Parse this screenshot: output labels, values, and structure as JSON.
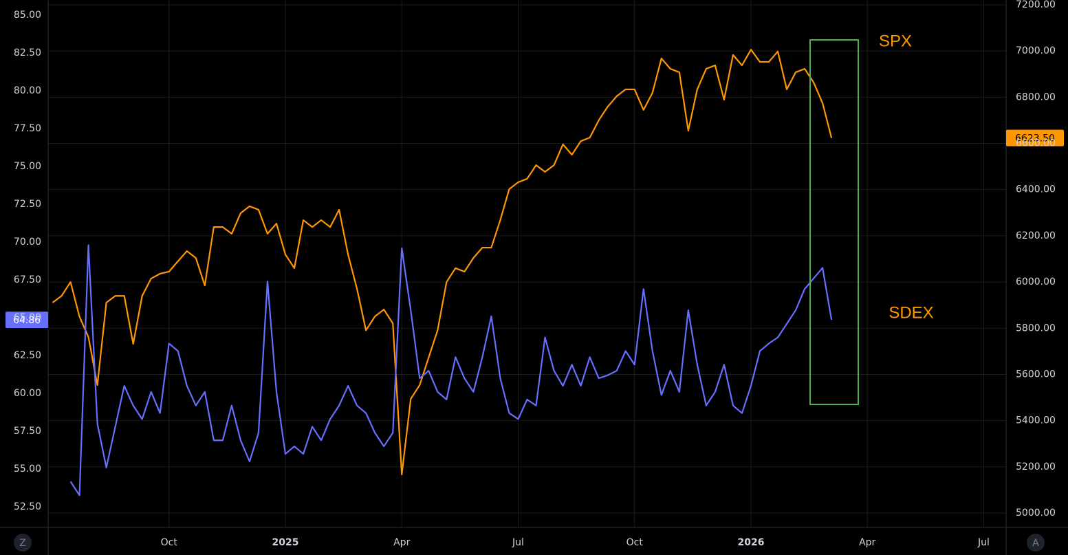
{
  "chart_data": {
    "type": "line",
    "categories": [
      null,
      null,
      null,
      null,
      null,
      null,
      null,
      null,
      null,
      null,
      null,
      null,
      null,
      "Oct",
      null,
      null,
      null,
      null,
      null,
      null,
      null,
      null,
      null,
      null,
      null,
      null,
      "2025",
      null,
      null,
      null,
      null,
      null,
      null,
      null,
      null,
      null,
      null,
      null,
      null,
      "Apr",
      null,
      null,
      null,
      null,
      null,
      null,
      null,
      null,
      null,
      null,
      null,
      null,
      "Jul",
      null,
      null,
      null,
      null,
      null,
      null,
      null,
      null,
      null,
      null,
      null,
      null,
      "Oct",
      null,
      null,
      null,
      null,
      null,
      null,
      null,
      null,
      null,
      null,
      null,
      null,
      "2026",
      null,
      null,
      null,
      null,
      null,
      null,
      null,
      null,
      null,
      null,
      null,
      null,
      "Apr",
      null,
      null,
      null,
      null,
      null,
      null,
      null,
      null,
      null,
      null,
      null,
      null,
      "Jul",
      null,
      null
    ],
    "series": [
      {
        "name": "SDEX",
        "color": "#6670ff",
        "axis": "y",
        "values": [
          null,
          null,
          54.18,
          53.27,
          69.8,
          58.0,
          55.1,
          57.8,
          60.5,
          59.2,
          58.3,
          60.1,
          58.7,
          63.3,
          62.8,
          60.5,
          59.2,
          60.1,
          56.9,
          56.9,
          59.2,
          56.9,
          55.5,
          57.4,
          67.4,
          60.1,
          56.0,
          56.5,
          56.0,
          57.8,
          56.9,
          58.3,
          59.2,
          60.5,
          59.2,
          58.7,
          57.4,
          56.5,
          57.4,
          69.6,
          65.5,
          61.0,
          61.5,
          60.1,
          59.6,
          62.4,
          61.0,
          60.1,
          62.4,
          65.1,
          61.0,
          58.7,
          58.3,
          59.6,
          59.2,
          63.7,
          61.5,
          60.5,
          61.9,
          60.5,
          62.4,
          61.0,
          61.2,
          61.5,
          62.8,
          61.9,
          66.9,
          62.8,
          59.9,
          61.5,
          60.1,
          65.5,
          61.9,
          59.2,
          60.1,
          61.9,
          59.2,
          58.7,
          60.5,
          62.8,
          63.3,
          63.7,
          64.6,
          65.5,
          66.9,
          67.6,
          68.3,
          64.86,
          null,
          null,
          null,
          null,
          null,
          null,
          null,
          null,
          null,
          null,
          null,
          null,
          null,
          null,
          null,
          null,
          null,
          null,
          null
        ],
        "value_labels": [
          null,
          null,
          null,
          null,
          null,
          null,
          null,
          null,
          null,
          null,
          null,
          null,
          null,
          null,
          null,
          null,
          null,
          null,
          null,
          null,
          null,
          null,
          null,
          null,
          null,
          null,
          null,
          null,
          null,
          null,
          null,
          null,
          null,
          null,
          null,
          null,
          null,
          null,
          null,
          null,
          null,
          null,
          null,
          null,
          null,
          null,
          null,
          null,
          null,
          null,
          null,
          null,
          null,
          null,
          null,
          null,
          null,
          null,
          null,
          null,
          null,
          null,
          null,
          null,
          null,
          null,
          null,
          null,
          null,
          null,
          null,
          null,
          null,
          null,
          null,
          null,
          null,
          null,
          null,
          null,
          null,
          null,
          null,
          null,
          null,
          null,
          null,
          "64.86",
          null,
          null,
          null,
          null,
          null,
          null,
          null,
          null,
          null,
          null,
          null,
          null,
          null,
          null,
          null,
          null,
          null,
          null,
          null
        ]
      },
      {
        "name": "SPX",
        "color": "#ff9800",
        "axis": "y2",
        "values": [
          5911,
          5940,
          6000,
          5850,
          5762,
          5554,
          5911,
          5940,
          5940,
          5732,
          5940,
          6015,
          6036,
          6045,
          6090,
          6134,
          6104,
          5985,
          6238,
          6238,
          6209,
          6298,
          6328,
          6313,
          6209,
          6253,
          6119,
          6060,
          6268,
          6238,
          6268,
          6238,
          6313,
          6119,
          5970,
          5791,
          5851,
          5881,
          5821,
          5167,
          5494,
          5554,
          5673,
          5791,
          6000,
          6060,
          6045,
          6104,
          6149,
          6149,
          6268,
          6402,
          6432,
          6447,
          6506,
          6477,
          6506,
          6596,
          6551,
          6610,
          6625,
          6700,
          6759,
          6804,
          6834,
          6834,
          6745,
          6819,
          6968,
          6923,
          6908,
          6655,
          6834,
          6923,
          6938,
          6789,
          6983,
          6938,
          7006,
          6953,
          6953,
          6998,
          6834,
          6908,
          6923,
          6864,
          6774,
          6623.5,
          null,
          null,
          null,
          null,
          null,
          null,
          null,
          null,
          null,
          null,
          null,
          null,
          null,
          null,
          null,
          null,
          null,
          null,
          null
        ],
        "value_labels": [
          null,
          null,
          null,
          null,
          null,
          null,
          null,
          null,
          null,
          null,
          null,
          null,
          null,
          null,
          null,
          null,
          null,
          null,
          null,
          null,
          null,
          null,
          null,
          null,
          null,
          null,
          null,
          null,
          null,
          null,
          null,
          null,
          null,
          null,
          null,
          null,
          null,
          null,
          null,
          null,
          null,
          null,
          null,
          null,
          null,
          null,
          null,
          null,
          null,
          null,
          null,
          null,
          null,
          null,
          null,
          null,
          null,
          null,
          null,
          null,
          null,
          null,
          null,
          null,
          null,
          null,
          null,
          null,
          null,
          null,
          null,
          null,
          null,
          null,
          null,
          null,
          null,
          null,
          null,
          null,
          null,
          null,
          null,
          null,
          null,
          null,
          null,
          "6623.50",
          null,
          null,
          null,
          null,
          null,
          null,
          null,
          null,
          null,
          null,
          null,
          null,
          null,
          null,
          null,
          null,
          null,
          null,
          null
        ]
      }
    ],
    "ylim": [
      51.14,
      86.0
    ],
    "yticks": [
      {
        "value": 52.5,
        "label": "52.50"
      },
      {
        "value": 55,
        "label": "55.00"
      },
      {
        "value": 57.5,
        "label": "57.50"
      },
      {
        "value": 60,
        "label": "60.00"
      },
      {
        "value": 62.5,
        "label": "62.50"
      },
      {
        "value": 65,
        "label": "65.00"
      },
      {
        "value": 67.5,
        "label": "67.50"
      },
      {
        "value": 70,
        "label": "70.00"
      },
      {
        "value": 72.5,
        "label": "72.50"
      },
      {
        "value": 75,
        "label": "75.00"
      },
      {
        "value": 77.5,
        "label": "77.50"
      },
      {
        "value": 80,
        "label": "80.00"
      },
      {
        "value": 82.5,
        "label": "82.50"
      },
      {
        "value": 85,
        "label": "85.00"
      }
    ],
    "y2lim": [
      4937.5,
      7220.8
    ],
    "y2ticks": [
      {
        "value": 5000,
        "label": "5000.00"
      },
      {
        "value": 5200,
        "label": "5200.00"
      },
      {
        "value": 5400,
        "label": "5400.00"
      },
      {
        "value": 5600,
        "label": "5600.00"
      },
      {
        "value": 5800,
        "label": "5800.00"
      },
      {
        "value": 6000,
        "label": "6000.00"
      },
      {
        "value": 6200,
        "label": "6200.00"
      },
      {
        "value": 6400,
        "label": "6400.00"
      },
      {
        "value": 6600,
        "label": "6600.00"
      },
      {
        "value": 6800,
        "label": "6800.00"
      },
      {
        "value": 7000,
        "label": "7000.00"
      },
      {
        "value": 7200,
        "label": "7200.00"
      }
    ],
    "grid": true
  },
  "controls": {
    "left": "Z",
    "right": "A"
  }
}
